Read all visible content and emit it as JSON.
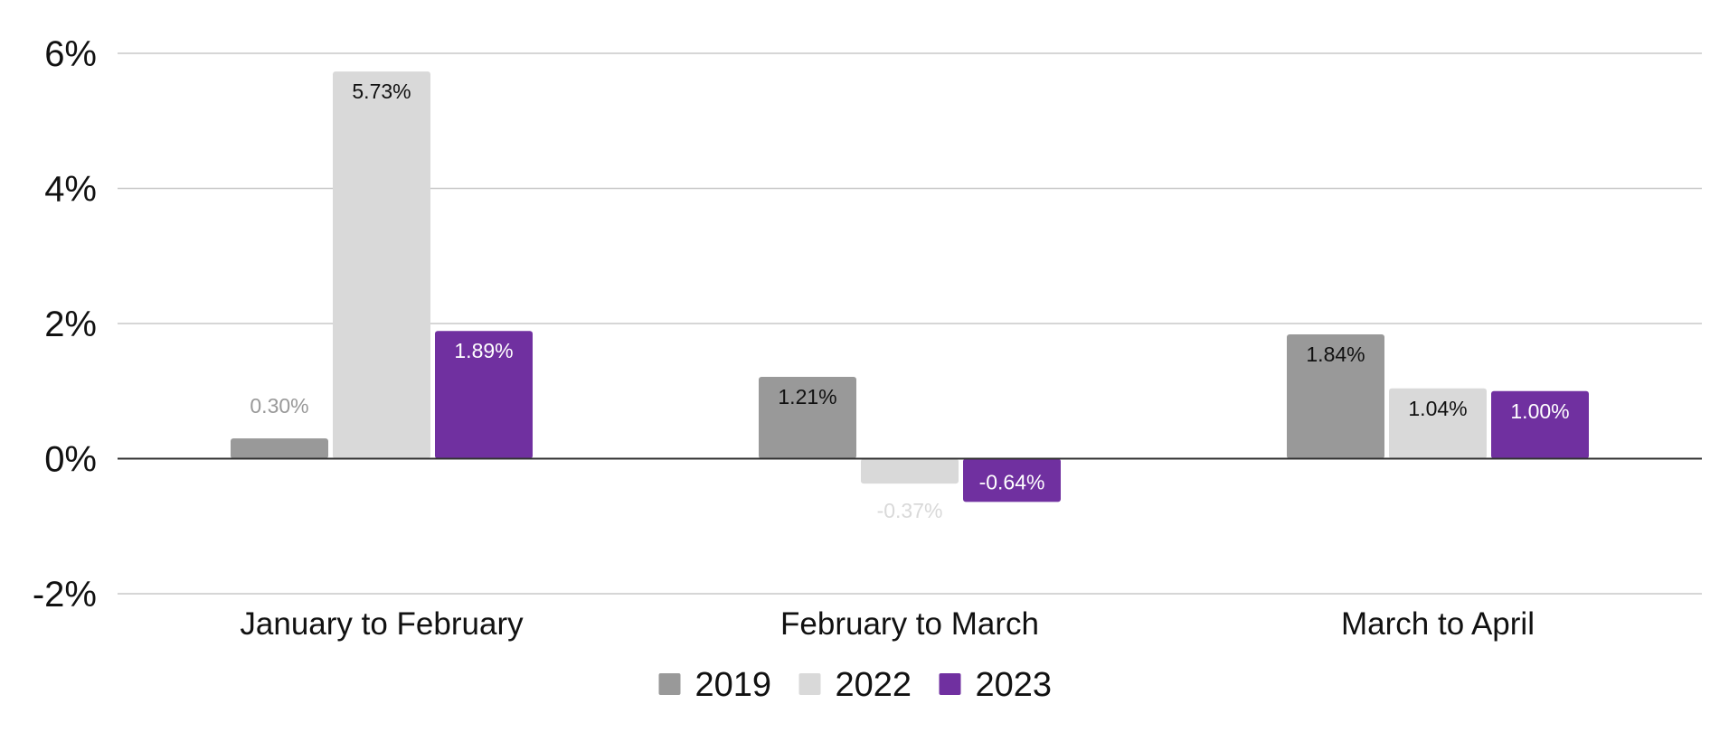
{
  "chart_data": {
    "type": "bar",
    "title": "",
    "xlabel": "",
    "ylabel": "",
    "categories": [
      "January to February",
      "February to March",
      "March to April"
    ],
    "series": [
      {
        "name": "2019",
        "color": "#999999",
        "values": [
          0.3,
          1.21,
          1.84
        ],
        "labels": [
          "0.30%",
          "1.21%",
          "1.84%"
        ]
      },
      {
        "name": "2022",
        "color": "#d9d9d9",
        "values": [
          5.73,
          -0.37,
          1.04
        ],
        "labels": [
          "5.73%",
          "-0.37%",
          "1.04%"
        ]
      },
      {
        "name": "2023",
        "color": "#7030a0",
        "values": [
          1.89,
          -0.64,
          1.0
        ],
        "labels": [
          "1.89%",
          "-0.64%",
          "1.00%"
        ]
      }
    ],
    "ylim": [
      -2,
      6
    ],
    "yticks": [
      6,
      4,
      2,
      0,
      -2
    ],
    "ytick_labels": [
      "6%",
      "4%",
      "2%",
      "0%",
      "-2%"
    ],
    "grid": true,
    "legend_position": "bottom"
  }
}
